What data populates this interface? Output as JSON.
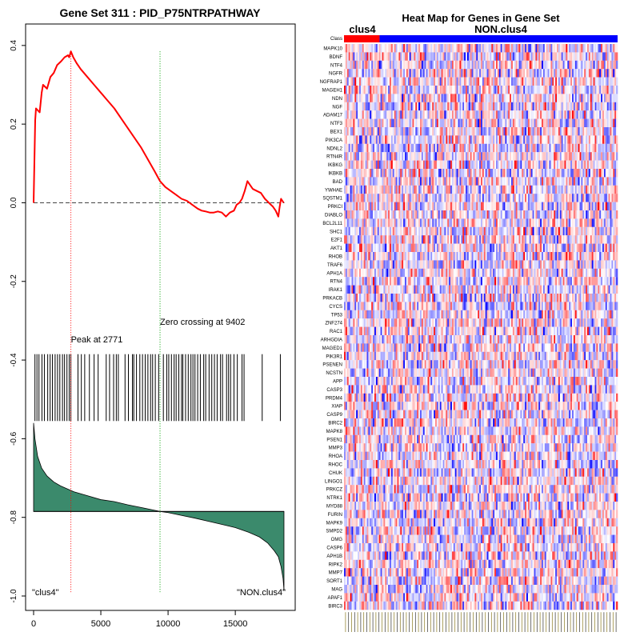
{
  "chart_data": [
    {
      "type": "line",
      "title": "Gene Set  311 : PID_P75NTRPATHWAY",
      "xlabel": "",
      "ylabel": "",
      "xlim": [
        0,
        18800
      ],
      "ylim": [
        -1.0,
        0.42
      ],
      "x_ticks": [
        0,
        5000,
        10000,
        15000
      ],
      "y_ticks": [
        0.4,
        0.2,
        0.0,
        -0.2,
        -0.4,
        -0.6,
        -0.8,
        -1.0
      ],
      "x_tick_labels": [
        "0",
        "5000",
        "10000",
        "15000"
      ],
      "y_tick_labels": [
        "0.4",
        "0.2",
        "0.0",
        "-0.2",
        "-0.4",
        "-0.6",
        "-0.8",
        "-1.0"
      ],
      "series": [
        {
          "color": "#ff0000",
          "x": [
            0,
            120,
            180,
            450,
            600,
            700,
            1000,
            1250,
            1500,
            1750,
            2050,
            2300,
            2550,
            2650,
            2771,
            2950,
            3200,
            3500,
            4000,
            4500,
            5000,
            5500,
            6000,
            6500,
            7000,
            7500,
            8000,
            8500,
            9000,
            9402,
            9800,
            10200,
            10600,
            11000,
            11400,
            11800,
            12200,
            12500,
            12800,
            13100,
            13400,
            13700,
            14000,
            14300,
            14600,
            14900,
            15100,
            15300,
            15500,
            15700,
            15900,
            16100,
            16300,
            16600,
            16900,
            17200,
            17500,
            17800,
            18000,
            18200,
            18300,
            18400,
            18600
          ],
          "y": [
            0.0,
            0.21,
            0.24,
            0.23,
            0.28,
            0.3,
            0.29,
            0.32,
            0.33,
            0.35,
            0.36,
            0.37,
            0.375,
            0.37,
            0.385,
            0.37,
            0.355,
            0.34,
            0.32,
            0.3,
            0.28,
            0.26,
            0.24,
            0.215,
            0.19,
            0.165,
            0.14,
            0.11,
            0.08,
            0.055,
            0.04,
            0.03,
            0.02,
            0.01,
            0.005,
            -0.005,
            -0.015,
            -0.02,
            -0.022,
            -0.025,
            -0.025,
            -0.022,
            -0.025,
            -0.035,
            -0.025,
            -0.02,
            -0.005,
            0.0,
            0.01,
            0.03,
            0.055,
            0.045,
            0.035,
            0.03,
            0.025,
            0.01,
            0.0,
            -0.01,
            -0.02,
            -0.035,
            -0.01,
            0.01,
            0.0
          ]
        }
      ],
      "zero_line": 0.0,
      "peak": {
        "x": 2771,
        "label": "Peak at 2771",
        "color": "#ff0000"
      },
      "zero_crossing": {
        "x": 9402,
        "label": "Zero crossing at 9402",
        "color": "#00a000"
      },
      "hit_positions": [
        100,
        250,
        400,
        620,
        800,
        1050,
        1230,
        1400,
        1600,
        1780,
        1950,
        2150,
        2300,
        2480,
        2650,
        2771,
        3300,
        3550,
        3800,
        4150,
        4500,
        4800,
        5400,
        5650,
        5950,
        6150,
        6300,
        6800,
        7050,
        7350,
        7450,
        7650,
        7900,
        8100,
        8300,
        8500,
        8700,
        8850,
        9050,
        9300,
        9650,
        9900,
        10050,
        10250,
        10450,
        10600,
        10800,
        11000,
        11100,
        11300,
        11500,
        11700,
        11850,
        12000,
        12200,
        12400,
        12650,
        12800,
        13050,
        13250,
        13450,
        13650,
        13900,
        14050,
        14350,
        14500,
        14650,
        14900,
        15150,
        15500,
        15650,
        17000,
        18350
      ],
      "ranked_metric": {
        "fill_color": "#3b8a6c",
        "baseline": -0.785,
        "x": [
          0,
          100,
          300,
          600,
          1000,
          1500,
          2000,
          3000,
          4000,
          5000,
          6000,
          7000,
          8000,
          9000,
          9402,
          10000,
          11000,
          12000,
          13000,
          14000,
          15000,
          16000,
          16800,
          17400,
          17900,
          18200,
          18400,
          18550,
          18620
        ],
        "y": [
          -0.56,
          -0.6,
          -0.645,
          -0.675,
          -0.695,
          -0.71,
          -0.72,
          -0.735,
          -0.745,
          -0.755,
          -0.76,
          -0.768,
          -0.775,
          -0.782,
          -0.785,
          -0.788,
          -0.795,
          -0.802,
          -0.81,
          -0.818,
          -0.826,
          -0.838,
          -0.85,
          -0.865,
          -0.885,
          -0.9,
          -0.925,
          -0.955,
          -0.985
        ]
      },
      "annotations": [
        "\"clus4\"",
        "\"NON.clus4\""
      ]
    },
    {
      "type": "heatmap",
      "title": "Heat Map for Genes in Gene Set",
      "group_labels": [
        "clus4",
        "NON.clus4"
      ],
      "class_bar": {
        "label": "Class",
        "clus4_color": "#ff0000",
        "non_color": "#0000ff",
        "clus4_fraction": 0.13
      },
      "rows": [
        "MAPK10",
        "BDNF",
        "NTF4",
        "NGFR",
        "NGFRAP1",
        "MAGEH1",
        "NDN",
        "NGF",
        "ADAM17",
        "NTF3",
        "BEX1",
        "PIK3CA",
        "NDNL2",
        "RTN4R",
        "IKBKG",
        "IKBKB",
        "BAD",
        "YWHAE",
        "SQSTM1",
        "PRKCI",
        "DIABLO",
        "BCL2L11",
        "SHC1",
        "E2F1",
        "AKT1",
        "RHOB",
        "TRAF6",
        "APH1A",
        "RTN4",
        "IRAK1",
        "PRKACB",
        "CYCS",
        "TP53",
        "ZNF274",
        "RAC1",
        "ARHGDIA",
        "MAGED1",
        "PIK3R1",
        "PSENEN",
        "NCSTN",
        "APP",
        "CASP3",
        "PRDM4",
        "XIAP",
        "CASP9",
        "BIRC2",
        "MAPK8",
        "PSEN1",
        "MMP3",
        "RHOA",
        "RHOC",
        "CHUK",
        "LINGO1",
        "PRKCZ",
        "NTRK1",
        "MYD88",
        "FURIN",
        "MAPK9",
        "SMPD2",
        "OMG",
        "CASP6",
        "APH1B",
        "RIPK2",
        "MMP7",
        "SORT1",
        "MAG",
        "APAF1",
        "BIRC3"
      ],
      "n_columns": 180,
      "colors": {
        "low": "#0000ff",
        "mid": "#ffffff",
        "high": "#ff0000"
      }
    }
  ]
}
